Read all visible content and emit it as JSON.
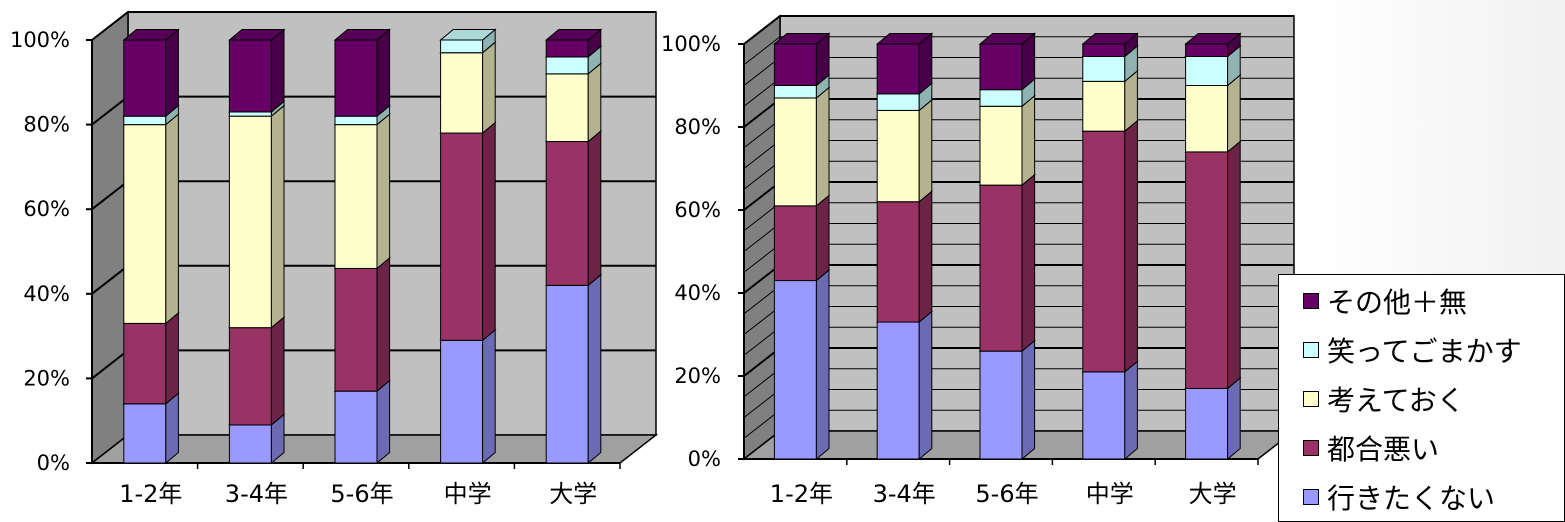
{
  "colors": {
    "その他＋無": "#660066",
    "笑ってごまかす": "#ccffff",
    "考えておく": "#ffffcc",
    "都合悪い": "#993366",
    "行きたくない": "#9999ff"
  },
  "legend": {
    "items": [
      "その他＋無",
      "笑ってごまかす",
      "考えておく",
      "都合悪い",
      "行きたくない"
    ]
  },
  "chart_data": [
    {
      "type": "bar",
      "stacked": true,
      "percent": true,
      "three_d": true,
      "categories": [
        "1-2年",
        "3-4年",
        "5-6年",
        "中学",
        "大学"
      ],
      "yticks": [
        "0%",
        "20%",
        "40%",
        "60%",
        "80%",
        "100%"
      ],
      "ylim": [
        0,
        100
      ],
      "grid": true,
      "series": [
        {
          "name": "行きたくない",
          "values": [
            14,
            9,
            17,
            29,
            42
          ]
        },
        {
          "name": "都合悪い",
          "values": [
            19,
            23,
            29,
            49,
            34
          ]
        },
        {
          "name": "考えておく",
          "values": [
            47,
            50,
            34,
            19,
            16
          ]
        },
        {
          "name": "笑ってごまかす",
          "values": [
            2,
            1,
            2,
            3,
            4
          ]
        },
        {
          "name": "その他＋無",
          "values": [
            18,
            17,
            18,
            0,
            4
          ]
        }
      ]
    },
    {
      "type": "bar",
      "stacked": true,
      "percent": true,
      "three_d": true,
      "categories": [
        "1-2年",
        "3-4年",
        "5-6年",
        "中学",
        "大学"
      ],
      "yticks": [
        "0%",
        "20%",
        "40%",
        "60%",
        "80%",
        "100%"
      ],
      "ylim": [
        0,
        100
      ],
      "grid": true,
      "legend_position": "right",
      "series": [
        {
          "name": "行きたくない",
          "values": [
            43,
            33,
            26,
            21,
            17
          ]
        },
        {
          "name": "都合悪い",
          "values": [
            18,
            29,
            40,
            58,
            57
          ]
        },
        {
          "name": "考えておく",
          "values": [
            26,
            22,
            19,
            12,
            16
          ]
        },
        {
          "name": "笑ってごまかす",
          "values": [
            3,
            4,
            4,
            6,
            7
          ]
        },
        {
          "name": "その他＋無",
          "values": [
            10,
            12,
            11,
            3,
            3
          ]
        }
      ]
    }
  ]
}
